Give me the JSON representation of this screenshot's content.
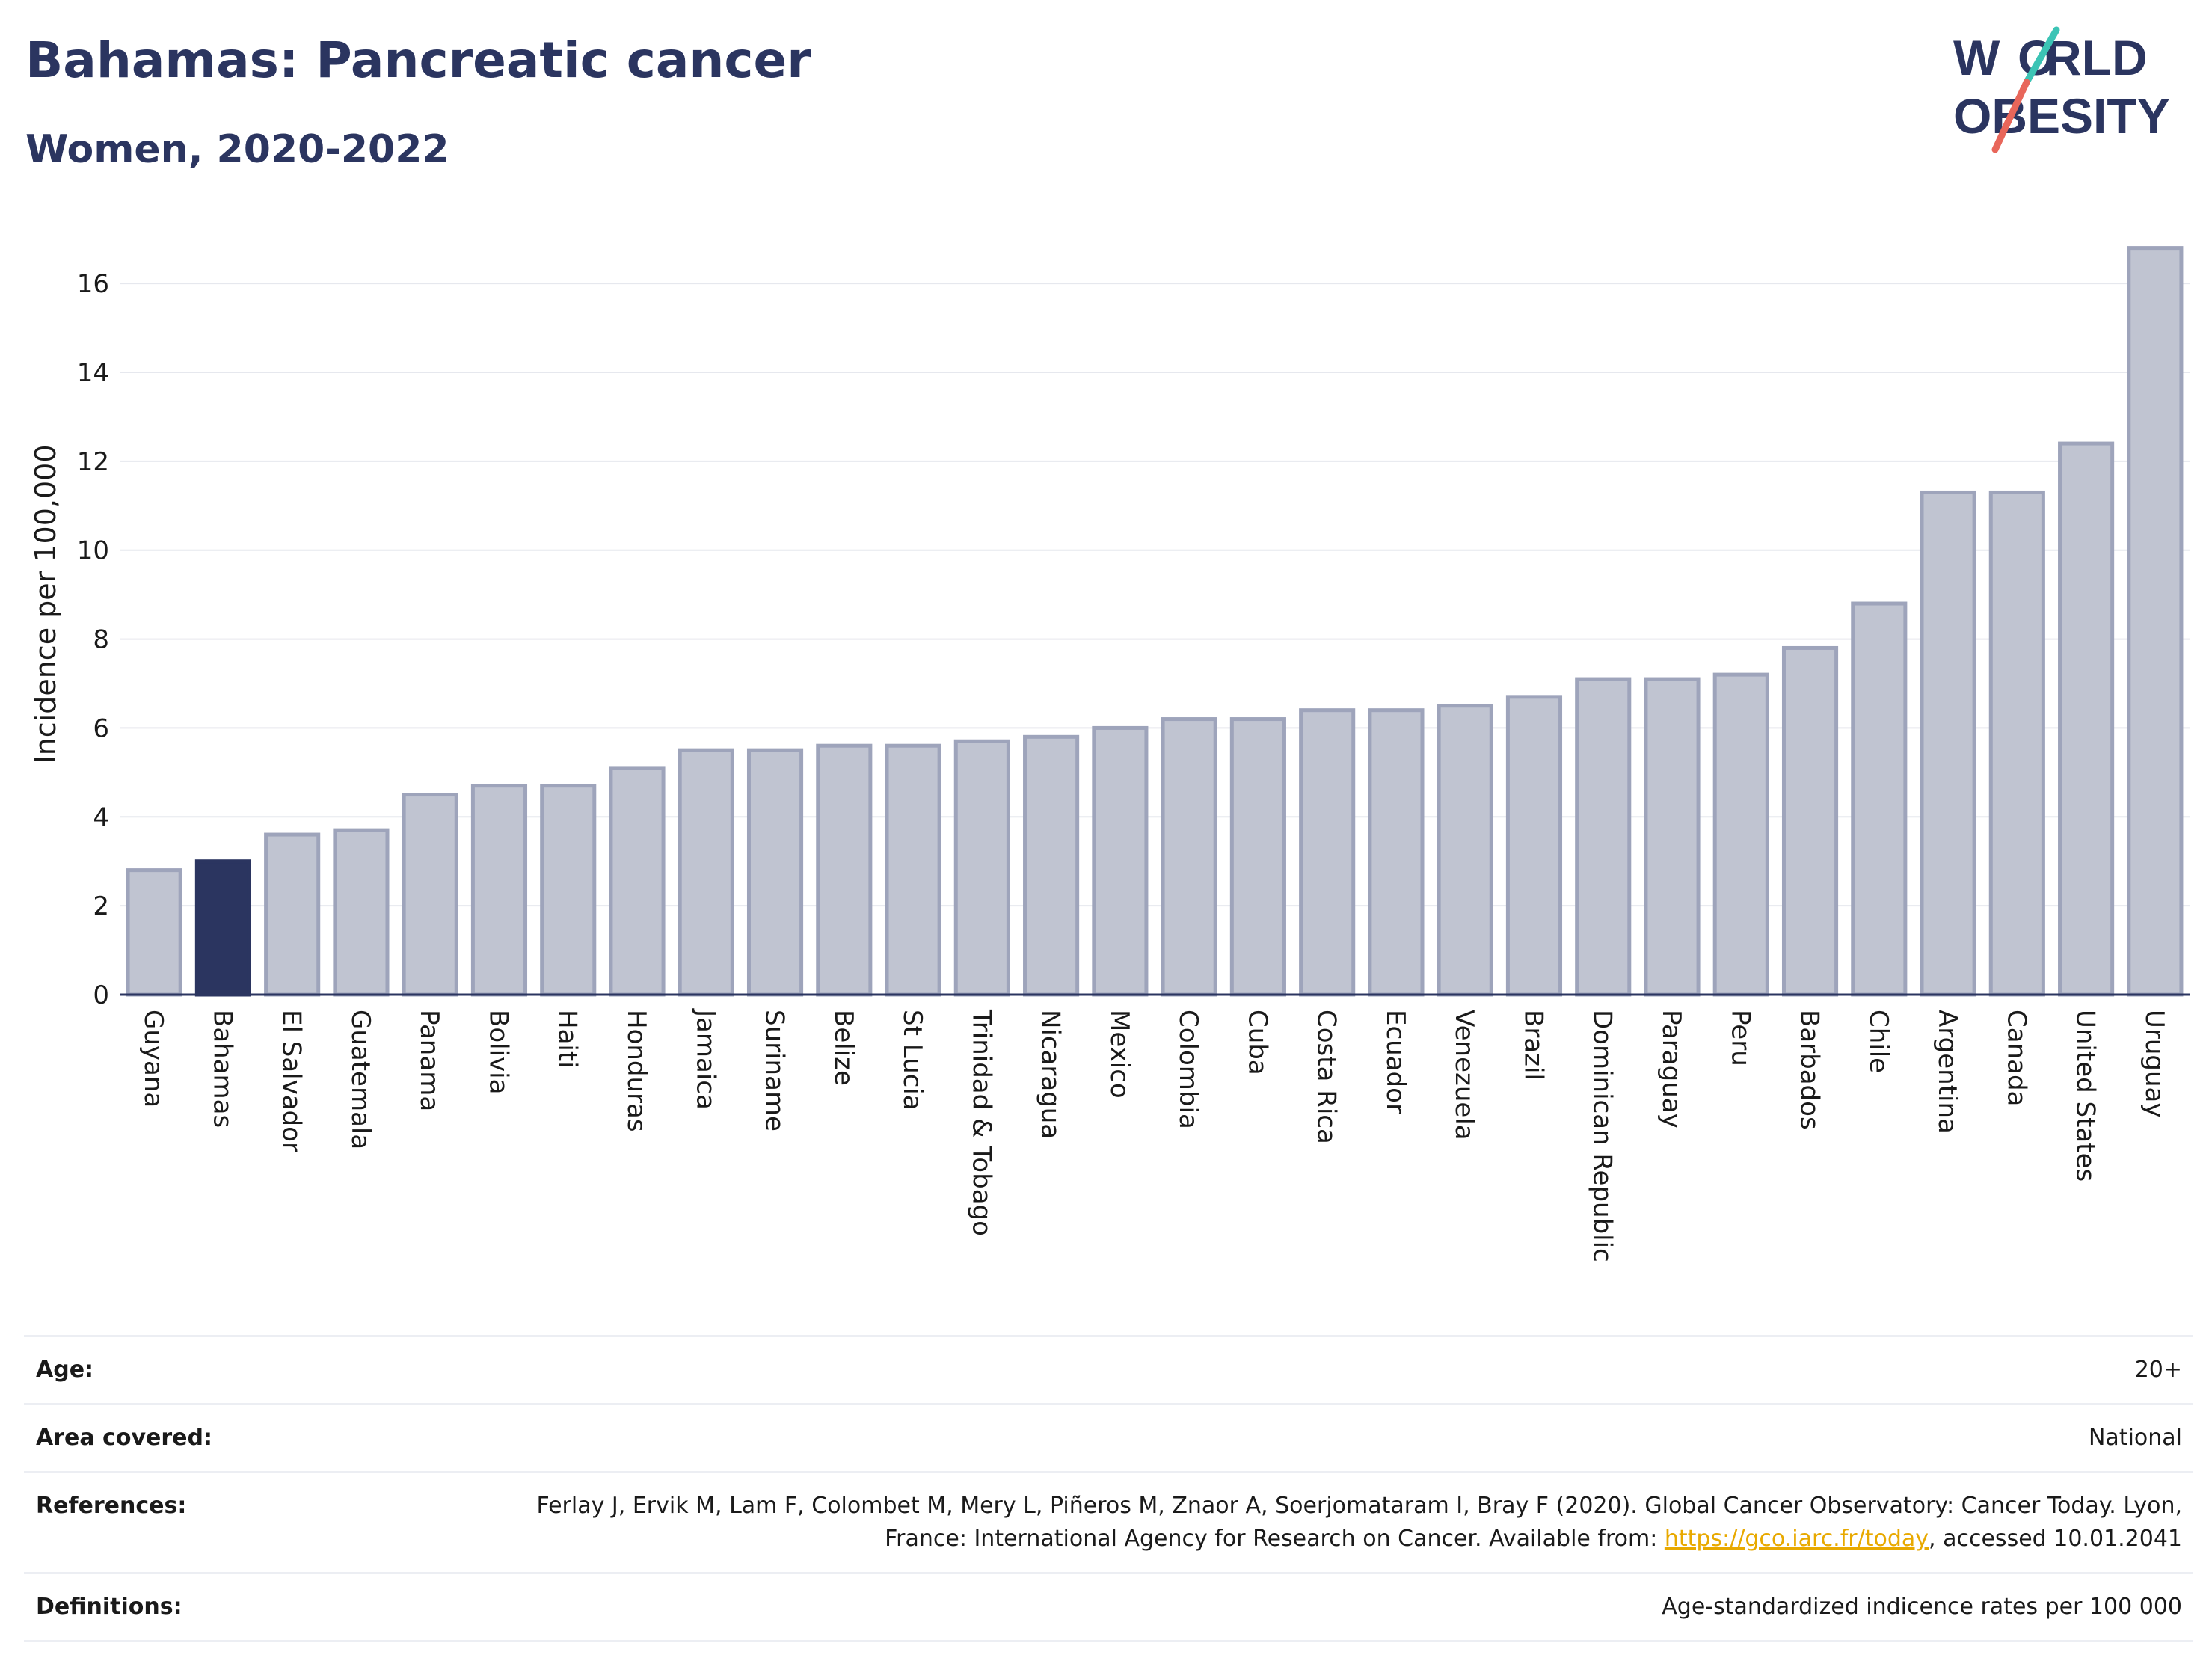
{
  "header": {
    "title": "Bahamas: Pancreatic cancer",
    "subtitle": "Women, 2020-2022"
  },
  "logo": {
    "line1": "W RLD",
    "line2": "OBESITY",
    "colors": [
      "#2b3560",
      "#3cc4b5",
      "#e8665a"
    ]
  },
  "chart_data": {
    "type": "bar",
    "categories": [
      "Guyana",
      "Bahamas",
      "El Salvador",
      "Guatemala",
      "Panama",
      "Bolivia",
      "Haiti",
      "Honduras",
      "Jamaica",
      "Suriname",
      "Belize",
      "St Lucia",
      "Trinidad & Tobago",
      "Nicaragua",
      "Mexico",
      "Colombia",
      "Cuba",
      "Costa Rica",
      "Ecuador",
      "Venezuela",
      "Brazil",
      "Dominican Republic",
      "Paraguay",
      "Peru",
      "Barbados",
      "Chile",
      "Argentina",
      "Canada",
      "United States",
      "Uruguay"
    ],
    "values": [
      2.8,
      3.0,
      3.6,
      3.7,
      4.5,
      4.7,
      4.7,
      5.1,
      5.5,
      5.5,
      5.6,
      5.6,
      5.7,
      5.8,
      6.0,
      6.2,
      6.2,
      6.4,
      6.4,
      6.5,
      6.7,
      7.1,
      7.1,
      7.2,
      7.8,
      8.8,
      11.3,
      11.3,
      12.4,
      16.8
    ],
    "highlight": "Bahamas",
    "ylabel": "Incidence per 100,000",
    "xlabel": "",
    "ylim": [
      0,
      17.5
    ],
    "yticks": [
      0,
      2,
      4,
      6,
      8,
      10,
      12,
      14,
      16
    ],
    "grid": true,
    "colors": {
      "bar": "#c0c4d1",
      "bar_border": "#9ea4bb",
      "highlight": "#2b3560",
      "grid": "#e6e8ee",
      "axis": "#2b3560"
    }
  },
  "info": {
    "age_label": "Age:",
    "age_value": "20+",
    "area_label": "Area covered:",
    "area_value": "National",
    "references_label": "References:",
    "references_text_1": "Ferlay J, Ervik M, Lam F, Colombet M, Mery L, Piñeros M, Znaor A, Soerjomataram I, Bray F (2020). Global Cancer Observatory: Cancer Today. Lyon, France: International Agency for Research on Cancer. Available from: ",
    "references_link": "https://gco.iarc.fr/today",
    "references_text_2": ", accessed 10.01.2041",
    "definitions_label": "Definitions:",
    "definitions_value": "Age-standardized indicence rates per 100 000"
  }
}
